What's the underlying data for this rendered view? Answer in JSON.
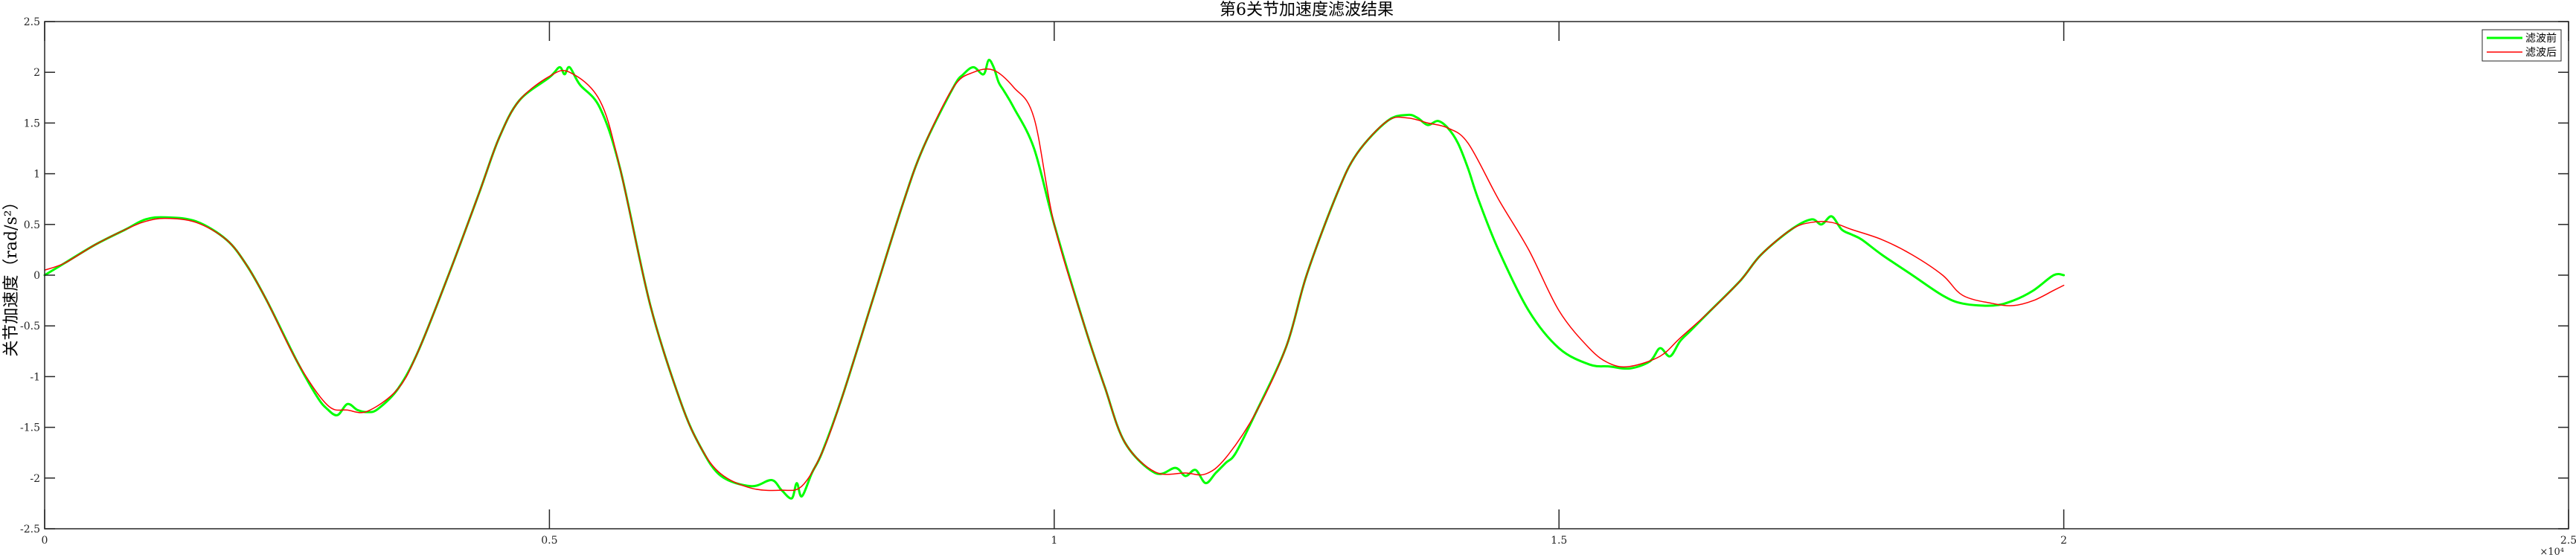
{
  "chart_data": {
    "type": "line",
    "title": "第6关节加速度滤波结果",
    "xlabel": "",
    "ylabel": "关节加速度（rad/s²）",
    "xlim": [
      0,
      25000
    ],
    "ylim": [
      -2.5,
      2.5
    ],
    "x_exponent_label": "×10⁴",
    "x_ticks": [
      0,
      5000,
      10000,
      15000,
      20000,
      25000
    ],
    "x_tick_labels": [
      "0",
      "0.5",
      "1",
      "1.5",
      "2",
      "2.5"
    ],
    "y_ticks": [
      -2.5,
      -2,
      -1.5,
      -1,
      -0.5,
      0,
      0.5,
      1,
      1.5,
      2,
      2.5
    ],
    "y_tick_labels": [
      "-2.5",
      "-2",
      "-1.5",
      "-1",
      "-0.5",
      "0",
      "0.5",
      "1",
      "1.5",
      "2",
      "2.5"
    ],
    "grid": false,
    "legend_position": "top-right",
    "series": [
      {
        "name": "滤波前",
        "color": "#00ff00",
        "x": [
          0,
          200,
          500,
          800,
          1000,
          1200,
          1500,
          1800,
          2000,
          2200,
          2500,
          2700,
          2800,
          2900,
          3000,
          3100,
          3200,
          3300,
          3500,
          3700,
          4000,
          4300,
          4500,
          4700,
          5000,
          5100,
          5150,
          5200,
          5300,
          5500,
          5700,
          6000,
          6300,
          6500,
          6700,
          7000,
          7200,
          7300,
          7400,
          7450,
          7500,
          7600,
          7700,
          7900,
          8200,
          8500,
          8700,
          9000,
          9100,
          9200,
          9300,
          9350,
          9400,
          9450,
          9500,
          9600,
          9800,
          10000,
          10300,
          10500,
          10700,
          11000,
          11200,
          11300,
          11400,
          11500,
          11600,
          11700,
          11800,
          12000,
          12300,
          12500,
          12800,
          13000,
          13300,
          13500,
          13600,
          13700,
          13800,
          13900,
          14000,
          14100,
          14200,
          14400,
          14700,
          15000,
          15300,
          15500,
          15700,
          15900,
          16000,
          16100,
          16200,
          16300,
          16500,
          16800,
          17000,
          17300,
          17500,
          17600,
          17700,
          17800,
          17900,
          18000,
          18200,
          18500,
          18800,
          19000,
          19300,
          19500,
          19700,
          19900,
          20000
        ],
        "y": [
          0.0,
          0.12,
          0.3,
          0.45,
          0.55,
          0.57,
          0.53,
          0.35,
          0.1,
          -0.25,
          -0.85,
          -1.2,
          -1.32,
          -1.38,
          -1.27,
          -1.33,
          -1.35,
          -1.32,
          -1.12,
          -0.75,
          0.0,
          0.8,
          1.35,
          1.72,
          1.95,
          2.05,
          1.98,
          2.05,
          1.88,
          1.65,
          1.05,
          -0.3,
          -1.25,
          -1.7,
          -1.98,
          -2.08,
          -2.02,
          -2.12,
          -2.2,
          -2.05,
          -2.18,
          -1.95,
          -1.75,
          -1.2,
          -0.25,
          0.7,
          1.25,
          1.85,
          1.98,
          2.05,
          1.98,
          2.12,
          2.05,
          1.9,
          1.82,
          1.65,
          1.25,
          0.5,
          -0.5,
          -1.1,
          -1.65,
          -1.95,
          -1.9,
          -1.98,
          -1.92,
          -2.05,
          -1.95,
          -1.85,
          -1.75,
          -1.35,
          -0.7,
          0.0,
          0.8,
          1.2,
          1.52,
          1.58,
          1.55,
          1.48,
          1.52,
          1.45,
          1.3,
          1.05,
          0.75,
          0.25,
          -0.35,
          -0.72,
          -0.88,
          -0.9,
          -0.92,
          -0.85,
          -0.72,
          -0.8,
          -0.65,
          -0.55,
          -0.35,
          -0.05,
          0.2,
          0.45,
          0.55,
          0.5,
          0.58,
          0.45,
          0.4,
          0.35,
          0.2,
          0.0,
          -0.2,
          -0.28,
          -0.3,
          -0.25,
          -0.15,
          0.0,
          0.0
        ]
      },
      {
        "name": "滤波后",
        "color": "#ff0000",
        "x": [
          0,
          200,
          500,
          800,
          1000,
          1200,
          1500,
          1800,
          2000,
          2200,
          2500,
          2800,
          3000,
          3200,
          3500,
          3700,
          4000,
          4300,
          4500,
          4700,
          5000,
          5200,
          5500,
          5700,
          6000,
          6300,
          6500,
          6700,
          7000,
          7300,
          7500,
          7700,
          7900,
          8200,
          8500,
          8700,
          9000,
          9200,
          9400,
          9600,
          9800,
          10000,
          10300,
          10500,
          10700,
          11000,
          11300,
          11500,
          11700,
          12000,
          12300,
          12500,
          12800,
          13000,
          13300,
          13500,
          13700,
          13900,
          14100,
          14400,
          14700,
          15000,
          15300,
          15500,
          15700,
          16000,
          16200,
          16500,
          16800,
          17000,
          17300,
          17500,
          17700,
          17900,
          18200,
          18500,
          18800,
          19000,
          19300,
          19500,
          19700,
          19900,
          20000
        ],
        "y": [
          0.05,
          0.12,
          0.3,
          0.45,
          0.53,
          0.56,
          0.52,
          0.35,
          0.1,
          -0.25,
          -0.85,
          -1.28,
          -1.33,
          -1.34,
          -1.12,
          -0.75,
          0.0,
          0.8,
          1.35,
          1.72,
          1.96,
          2.0,
          1.72,
          1.05,
          -0.3,
          -1.25,
          -1.7,
          -1.96,
          -2.1,
          -2.12,
          -2.08,
          -1.75,
          -1.2,
          -0.25,
          0.7,
          1.25,
          1.85,
          2.0,
          2.02,
          1.85,
          1.55,
          0.5,
          -0.5,
          -1.1,
          -1.65,
          -1.94,
          -1.95,
          -1.96,
          -1.8,
          -1.35,
          -0.7,
          0.0,
          0.8,
          1.2,
          1.52,
          1.55,
          1.5,
          1.45,
          1.3,
          0.75,
          0.25,
          -0.35,
          -0.72,
          -0.87,
          -0.9,
          -0.8,
          -0.62,
          -0.35,
          -0.05,
          0.2,
          0.45,
          0.52,
          0.52,
          0.45,
          0.35,
          0.2,
          0.0,
          -0.2,
          -0.28,
          -0.3,
          -0.25,
          -0.15,
          -0.1
        ]
      }
    ]
  }
}
